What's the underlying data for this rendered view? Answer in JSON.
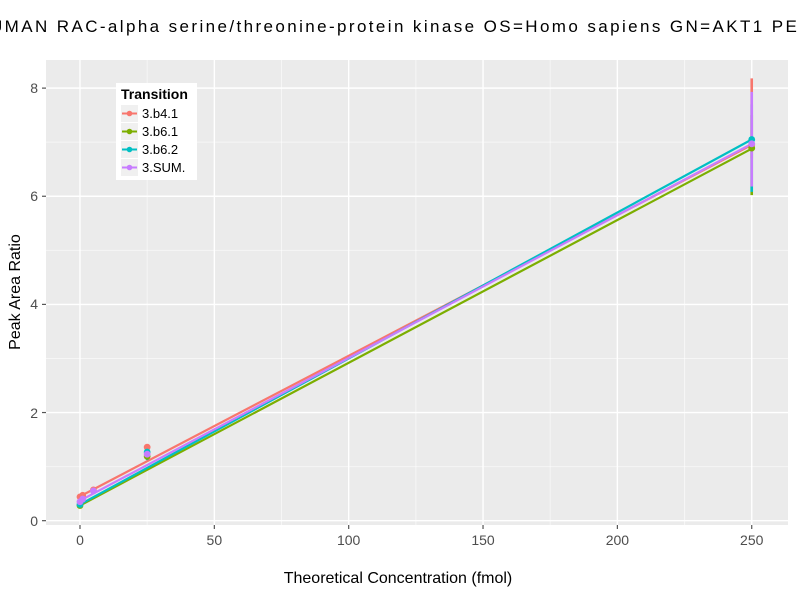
{
  "chart_data": {
    "type": "scatter",
    "title": "UMAN RAC-alpha serine/threonine-protein kinase OS=Homo sapiens GN=AKT1 PE",
    "title_note": "clipped at both image edges",
    "xlabel": "Theoretical Concentration (fmol)",
    "ylabel": "Peak Area Ratio",
    "xlim": [
      -12.65,
      263.5
    ],
    "ylim": [
      -0.08,
      8.52
    ],
    "x_ticks": [
      0,
      50,
      100,
      150,
      200,
      250
    ],
    "y_ticks": [
      0,
      2,
      4,
      6,
      8
    ],
    "x_minor": [
      25,
      75,
      125,
      175,
      225
    ],
    "y_minor": [
      1,
      3,
      5,
      7
    ],
    "grid": true,
    "panel_bg": "#EBEBEB",
    "grid_major_color": "#FFFFFF",
    "grid_minor_color": "#FFFFFF",
    "tick_color": "#555555",
    "legend": {
      "title": "Transition",
      "position": "top-left-inside",
      "entries": [
        {
          "label": "3.b4.1",
          "color": "#F8766D"
        },
        {
          "label": "3.b6.1",
          "color": "#7CAE00"
        },
        {
          "label": "3.b6.2",
          "color": "#00BFC4"
        },
        {
          "label": "3.SUM.",
          "color": "#C77CFF"
        }
      ]
    },
    "series": [
      {
        "name": "3.b4.1",
        "color": "#F8766D",
        "line": {
          "x": [
            0,
            250
          ],
          "y": [
            0.45,
            6.95
          ]
        },
        "points": [
          [
            0,
            0.44
          ],
          [
            1,
            0.47
          ],
          [
            5,
            0.57
          ],
          [
            25,
            1.36
          ],
          [
            250,
            6.95
          ]
        ],
        "error_bars": [
          {
            "x": 250,
            "ylo": 6.7,
            "yhi": 8.18
          }
        ]
      },
      {
        "name": "3.b6.1",
        "color": "#7CAE00",
        "line": {
          "x": [
            0,
            250
          ],
          "y": [
            0.28,
            6.88
          ]
        },
        "points": [
          [
            0,
            0.28
          ],
          [
            25,
            1.19
          ],
          [
            250,
            6.89
          ]
        ],
        "error_bars": [
          {
            "x": 250,
            "ylo": 6.02,
            "yhi": 7.5
          }
        ]
      },
      {
        "name": "3.b6.2",
        "color": "#00BFC4",
        "line": {
          "x": [
            0,
            250
          ],
          "y": [
            0.3,
            7.05
          ]
        },
        "points": [
          [
            0,
            0.3
          ],
          [
            25,
            1.27
          ],
          [
            250,
            7.05
          ]
        ],
        "error_bars": [
          {
            "x": 25,
            "ylo": 1.12,
            "yhi": 1.35
          },
          {
            "x": 250,
            "ylo": 6.08,
            "yhi": 7.7
          }
        ]
      },
      {
        "name": "3.SUM.",
        "color": "#C77CFF",
        "line": {
          "x": [
            0,
            250
          ],
          "y": [
            0.37,
            6.97
          ]
        },
        "points": [
          [
            0,
            0.35
          ],
          [
            1,
            0.4
          ],
          [
            5,
            0.55
          ],
          [
            25,
            1.23
          ],
          [
            250,
            6.97
          ]
        ],
        "error_bars": [
          {
            "x": 250,
            "ylo": 6.18,
            "yhi": 7.93
          }
        ]
      }
    ]
  }
}
